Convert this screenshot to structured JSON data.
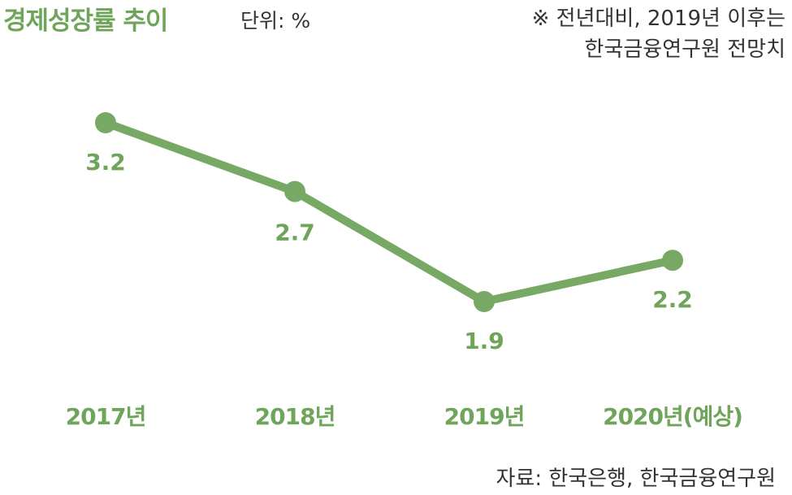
{
  "header": {
    "title": "경제성장률 추이",
    "unit": "단위: %"
  },
  "note": {
    "line1": "※ 전년대비, 2019년 이후는",
    "line2": "한국금융연구원 전망치"
  },
  "source": "자료: 한국은행, 한국금융연구원",
  "colors": {
    "series": "#77a964",
    "text_accent": "#6fa55a",
    "text": "#333333"
  },
  "chart_data": {
    "type": "line",
    "title": "경제성장률 추이",
    "categories": [
      "2017년",
      "2018년",
      "2019년",
      "2020년(예상)"
    ],
    "values": [
      3.2,
      2.7,
      1.9,
      2.2
    ],
    "data_labels": [
      "3.2",
      "2.7",
      "1.9",
      "2.2"
    ],
    "grid": false,
    "legend": "none"
  }
}
